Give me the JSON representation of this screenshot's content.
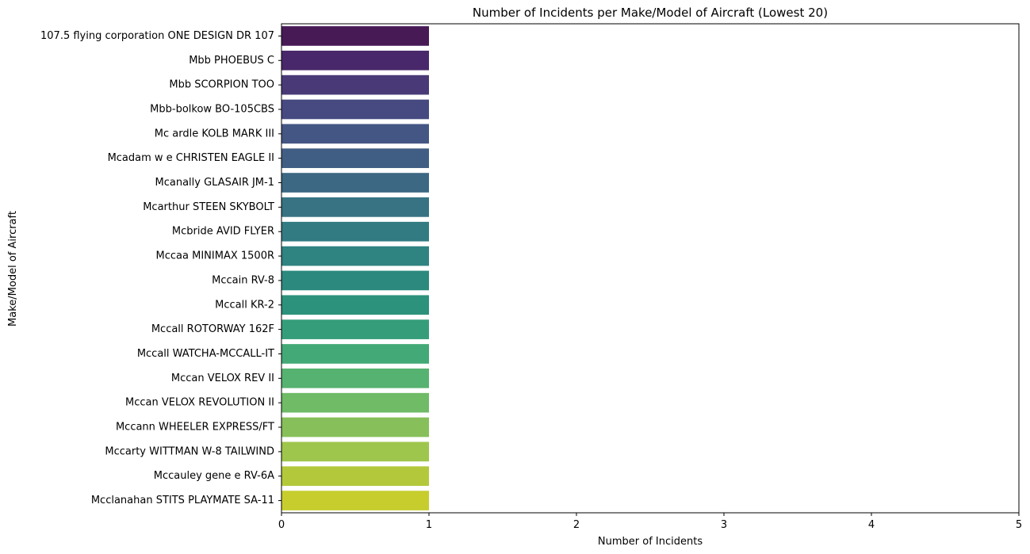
{
  "chart_data": {
    "type": "bar",
    "orientation": "horizontal",
    "title": "Number of Incidents per Make/Model of Aircraft (Lowest 20)",
    "xlabel": "Number of Incidents",
    "ylabel": "Make/Model of Aircraft",
    "xlim": [
      0,
      5
    ],
    "xticks": [
      "0",
      "1",
      "2",
      "3",
      "4",
      "5"
    ],
    "grid": false,
    "legend": "none",
    "palette": "viridis",
    "categories": [
      "107.5 flying corporation ONE DESIGN DR 107",
      "Mbb PHOEBUS C",
      "Mbb SCORPION TOO",
      "Mbb-bolkow BO-105CBS",
      "Mc ardle KOLB MARK III",
      "Mcadam w e CHRISTEN EAGLE II",
      "Mcanally GLASAIR JM-1",
      "Mcarthur STEEN SKYBOLT",
      "Mcbride AVID FLYER",
      "Mccaa MINIMAX 1500R",
      "Mccain RV-8",
      "Mccall KR-2",
      "Mccall ROTORWAY 162F",
      "Mccall WATCHA-MCCALL-IT",
      "Mccan VELOX REV II",
      "Mccan VELOX REVOLUTION II",
      "Mccann WHEELER EXPRESS/FT",
      "Mccarty WITTMAN W-8 TAILWIND",
      "Mccauley gene e RV-6A",
      "Mcclanahan STITS PLAYMATE SA-11"
    ],
    "values": [
      1,
      1,
      1,
      1,
      1,
      1,
      1,
      1,
      1,
      1,
      1,
      1,
      1,
      1,
      1,
      1,
      1,
      1,
      1,
      1
    ],
    "colors": [
      "#471a56",
      "#48286a",
      "#493a77",
      "#474a80",
      "#445683",
      "#405e83",
      "#3c6883",
      "#377383",
      "#327b83",
      "#2f8381",
      "#2b8a7d",
      "#2c927b",
      "#369d7a",
      "#42a977",
      "#56b270",
      "#70bb66",
      "#87c05a",
      "#9ec64c",
      "#b3c93b",
      "#c7cd2d"
    ]
  }
}
